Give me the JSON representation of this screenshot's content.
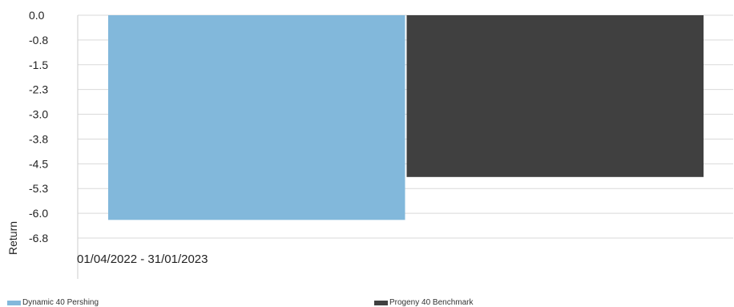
{
  "chart_data": {
    "type": "bar",
    "categories": [
      "01/04/2022 - 31/01/2023"
    ],
    "series": [
      {
        "name": "Dynamic 40 Pershing",
        "values": [
          -6.2
        ],
        "color": "#82b8db"
      },
      {
        "name": "Progeny 40 Benchmark",
        "values": [
          -4.9
        ],
        "color": "#404040"
      }
    ],
    "ylabel": "Return",
    "yticks": [
      "0.0",
      "-0.8",
      "-1.5",
      "-2.3",
      "-3.0",
      "-3.8",
      "-4.5",
      "-5.3",
      "-6.0",
      "-6.8"
    ],
    "ylim": [
      -6.75,
      0
    ],
    "grid": true,
    "legend_position": "bottom"
  }
}
